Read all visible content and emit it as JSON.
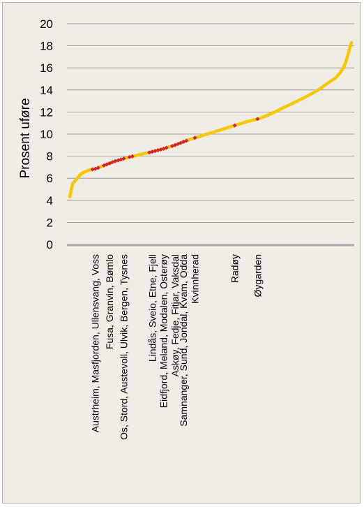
{
  "chart_data": {
    "type": "line",
    "ylabel": "Prosent uføre",
    "ylim": [
      0,
      20
    ],
    "yticks": [
      0,
      2,
      4,
      6,
      8,
      10,
      12,
      14,
      16,
      18,
      20
    ],
    "grid": "horizontal",
    "line_color": "#f5c800",
    "marker_color": "#d0203a",
    "x_count": 100,
    "series": [
      {
        "values": [
          4.3,
          5.5,
          5.8,
          6.1,
          6.4,
          6.55,
          6.65,
          6.75,
          6.8,
          6.85,
          6.95,
          7.05,
          7.15,
          7.25,
          7.35,
          7.45,
          7.55,
          7.62,
          7.7,
          7.78,
          7.85,
          7.92,
          7.98,
          8.04,
          8.1,
          8.16,
          8.22,
          8.28,
          8.34,
          8.4,
          8.47,
          8.54,
          8.61,
          8.68,
          8.76,
          8.84,
          8.92,
          9.0,
          9.1,
          9.2,
          9.3,
          9.4,
          9.5,
          9.58,
          9.66,
          9.74,
          9.82,
          9.9,
          9.98,
          10.06,
          10.14,
          10.22,
          10.3,
          10.38,
          10.46,
          10.54,
          10.62,
          10.7,
          10.78,
          10.86,
          10.94,
          11.02,
          11.1,
          11.17,
          11.24,
          11.3,
          11.37,
          11.45,
          11.55,
          11.65,
          11.76,
          11.88,
          12.0,
          12.12,
          12.25,
          12.38,
          12.5,
          12.62,
          12.75,
          12.88,
          13.0,
          13.12,
          13.25,
          13.38,
          13.52,
          13.66,
          13.8,
          13.95,
          14.12,
          14.3,
          14.5,
          14.68,
          14.85,
          15.0,
          15.25,
          15.55,
          15.95,
          16.5,
          17.4,
          18.3
        ]
      }
    ],
    "highlighted": [
      {
        "label": "Austrheim, Masfjorden, Ullensvang, Voss",
        "index": 9,
        "value": 6.85
      },
      {
        "label": "Fusa, Granvin, Bømlo",
        "index": 14,
        "value": 7.35
      },
      {
        "label": "Os, Stord, Austevoll, Ulvik, Bergen, Tysnes",
        "index": 19,
        "value": 7.78
      },
      {
        "label": "Lindås, Sveio, Etne, Fjell",
        "index": 29,
        "value": 8.4
      },
      {
        "label": "Eidfjord, Meland, Modalen, Osterøy",
        "index": 33,
        "value": 8.68
      },
      {
        "label": "Askøy, Fedje, Fitjar, Vaksdal",
        "index": 37,
        "value": 9.0
      },
      {
        "label": "Samnanger, Sund, Jondal, Kvam, Odda",
        "index": 40,
        "value": 9.3
      },
      {
        "label": "Kvinnherad",
        "index": 44,
        "value": 9.66
      },
      {
        "label": "Radøy",
        "index": 58,
        "value": 10.78
      },
      {
        "label": "Øygarden",
        "index": 66,
        "value": 11.37
      }
    ],
    "markers": [
      {
        "index": 8,
        "value": 6.8
      },
      {
        "index": 9,
        "value": 6.85
      },
      {
        "index": 10,
        "value": 6.95
      },
      {
        "index": 12,
        "value": 7.15
      },
      {
        "index": 13,
        "value": 7.25
      },
      {
        "index": 14,
        "value": 7.35
      },
      {
        "index": 15,
        "value": 7.45
      },
      {
        "index": 16,
        "value": 7.55
      },
      {
        "index": 17,
        "value": 7.62
      },
      {
        "index": 18,
        "value": 7.7
      },
      {
        "index": 19,
        "value": 7.78
      },
      {
        "index": 21,
        "value": 7.92
      },
      {
        "index": 22,
        "value": 7.98
      },
      {
        "index": 28,
        "value": 8.34
      },
      {
        "index": 29,
        "value": 8.4
      },
      {
        "index": 30,
        "value": 8.47
      },
      {
        "index": 31,
        "value": 8.54
      },
      {
        "index": 32,
        "value": 8.61
      },
      {
        "index": 33,
        "value": 8.68
      },
      {
        "index": 34,
        "value": 8.76
      },
      {
        "index": 36,
        "value": 8.92
      },
      {
        "index": 37,
        "value": 9.0
      },
      {
        "index": 38,
        "value": 9.1
      },
      {
        "index": 39,
        "value": 9.2
      },
      {
        "index": 40,
        "value": 9.3
      },
      {
        "index": 41,
        "value": 9.4
      },
      {
        "index": 44,
        "value": 9.66
      },
      {
        "index": 58,
        "value": 10.78
      },
      {
        "index": 66,
        "value": 11.37
      }
    ]
  }
}
